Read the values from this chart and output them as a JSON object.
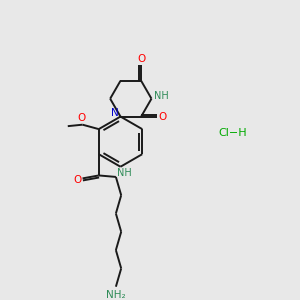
{
  "bg_color": "#e8e8e8",
  "atom_colors": {
    "O": "#ff0000",
    "N": "#0000cd",
    "NH": "#2e8b57",
    "C": "#000000",
    "Cl": "#00aa00",
    "H_green": "#2e8b57"
  },
  "line_color": "#1a1a1a",
  "line_width": 1.4
}
